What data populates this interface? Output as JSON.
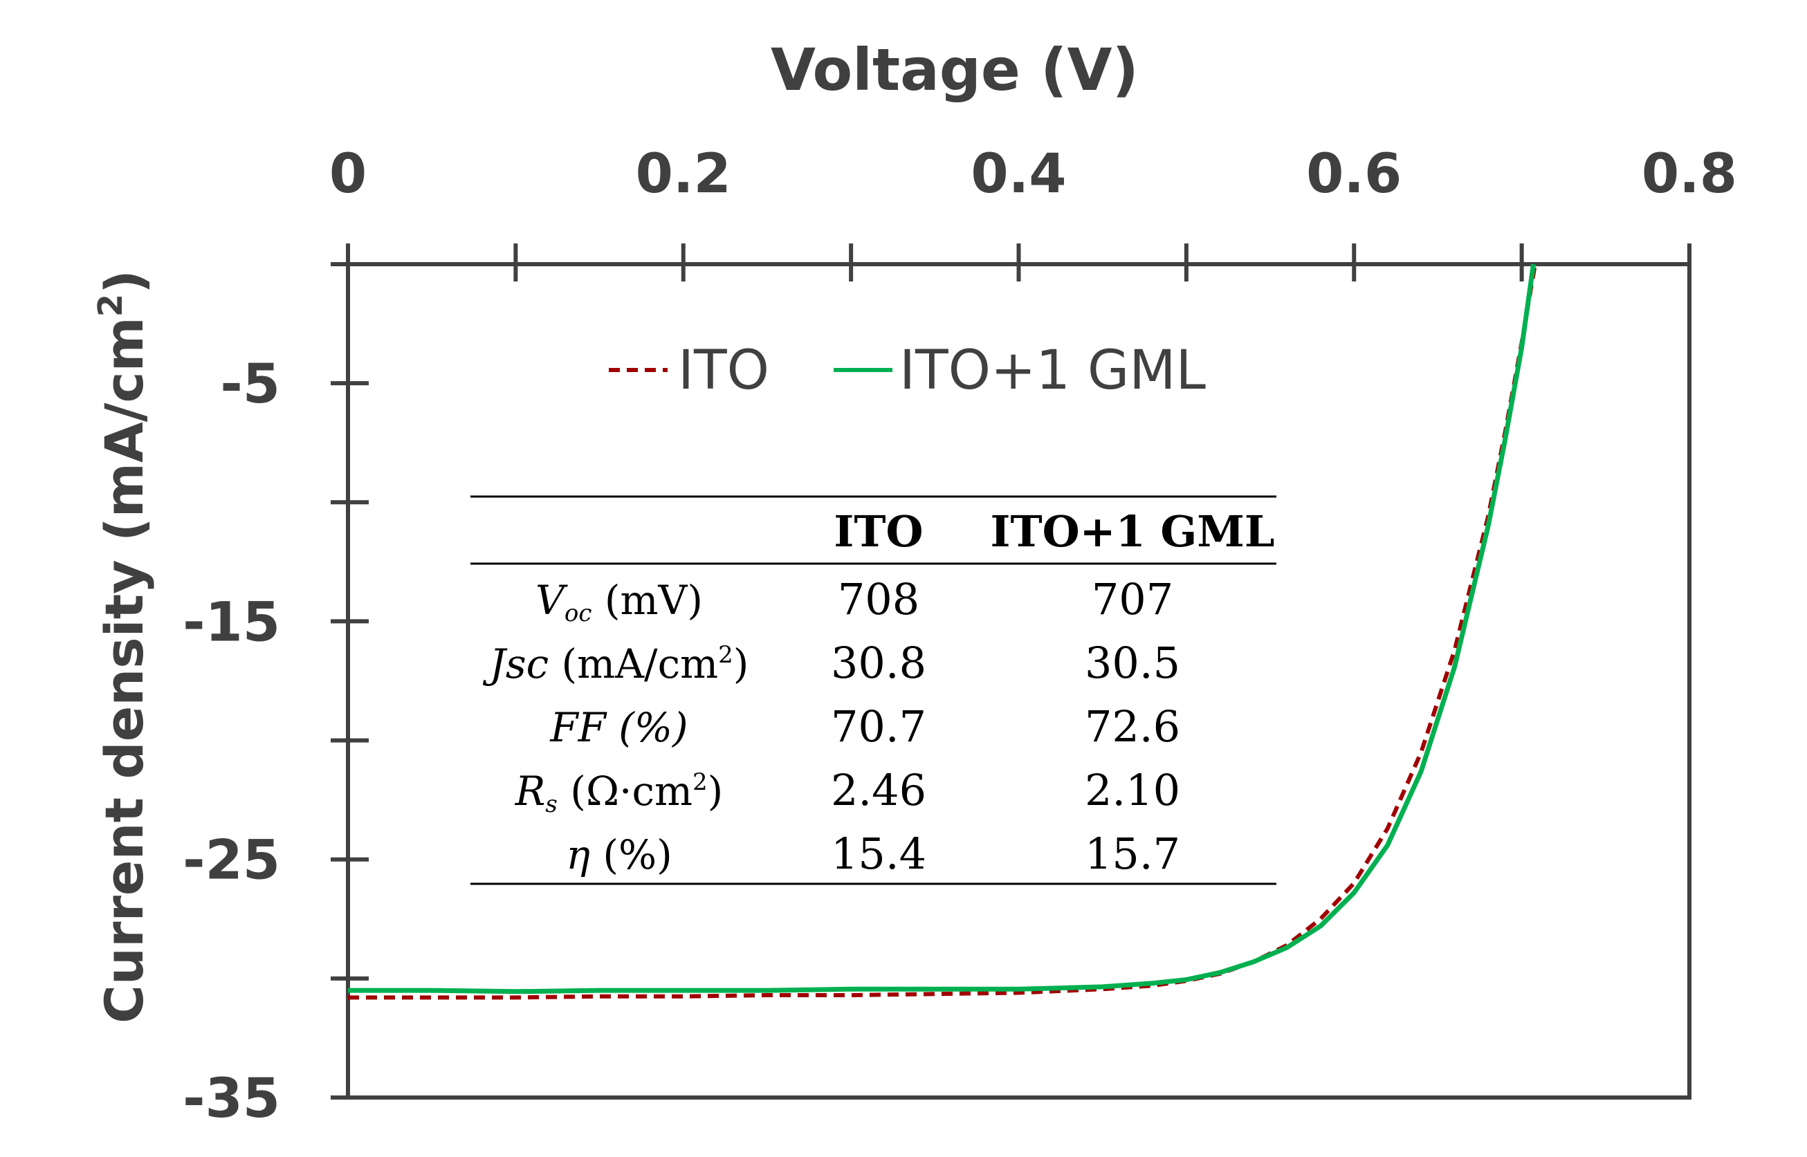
{
  "chart_data": {
    "type": "line",
    "xlabel": "Voltage (V)",
    "ylabel_main": "Current density (mA/cm",
    "ylabel_sup": "2",
    "ylabel_end": ")",
    "xlim": [
      0,
      0.8
    ],
    "ylim": [
      -35,
      0
    ],
    "x_ticks": [
      0,
      0.2,
      0.4,
      0.6,
      0.8
    ],
    "x_tick_labels": [
      "0",
      "0.2",
      "0.4",
      "0.6",
      "0.8"
    ],
    "y_ticks": [
      -5,
      -15,
      -25,
      -35
    ],
    "y_tick_labels": [
      "-5",
      "-15",
      "-25",
      "-35"
    ],
    "x_axis_position": "top",
    "grid": false,
    "legend_position": "top-center",
    "series": [
      {
        "name": "ITO",
        "color": "#a00000",
        "style": "dashed",
        "x": [
          0,
          0.05,
          0.1,
          0.15,
          0.2,
          0.25,
          0.3,
          0.35,
          0.4,
          0.45,
          0.48,
          0.5,
          0.52,
          0.54,
          0.56,
          0.58,
          0.6,
          0.62,
          0.64,
          0.66,
          0.68,
          0.69,
          0.7,
          0.708
        ],
        "y": [
          -30.8,
          -30.8,
          -30.8,
          -30.75,
          -30.75,
          -30.7,
          -30.7,
          -30.65,
          -30.6,
          -30.45,
          -30.3,
          -30.1,
          -29.8,
          -29.3,
          -28.6,
          -27.5,
          -26.0,
          -23.7,
          -20.5,
          -16.2,
          -10.6,
          -7.1,
          -3.3,
          0
        ]
      },
      {
        "name": "ITO+1 GML",
        "color": "#00b050",
        "style": "solid",
        "x": [
          0,
          0.05,
          0.1,
          0.15,
          0.2,
          0.25,
          0.3,
          0.35,
          0.4,
          0.45,
          0.48,
          0.5,
          0.52,
          0.54,
          0.56,
          0.58,
          0.6,
          0.62,
          0.64,
          0.66,
          0.68,
          0.69,
          0.7,
          0.707
        ],
        "y": [
          -30.5,
          -30.5,
          -30.55,
          -30.5,
          -30.5,
          -30.5,
          -30.45,
          -30.45,
          -30.45,
          -30.35,
          -30.2,
          -30.05,
          -29.75,
          -29.3,
          -28.7,
          -27.8,
          -26.4,
          -24.4,
          -21.3,
          -16.9,
          -11.0,
          -7.4,
          -3.5,
          0
        ]
      }
    ],
    "table": {
      "headers": [
        "",
        "ITO",
        "ITO+1 GML"
      ],
      "rows": [
        {
          "label_sym": "V",
          "label_sub": "oc",
          "label_rest": " (mV)",
          "ito": "708",
          "gml": "707"
        },
        {
          "label_sym": "Jsc",
          "label_sub": "",
          "label_rest": " (mA/cm",
          "label_sup": "2",
          "label_end": ")",
          "ito": "30.8",
          "gml": "30.5"
        },
        {
          "label_sym": "FF (%)",
          "label_sub": "",
          "label_rest": "",
          "ito": "70.7",
          "gml": "72.6"
        },
        {
          "label_sym": "R",
          "label_sub": "s",
          "label_rest": " (Ω·cm",
          "label_sup": "2",
          "label_end": ")",
          "ito": "2.46",
          "gml": "2.10"
        },
        {
          "label_sym": "η",
          "label_sub": "",
          "label_rest": " (%)",
          "ito": "15.4",
          "gml": "15.7"
        }
      ]
    }
  }
}
